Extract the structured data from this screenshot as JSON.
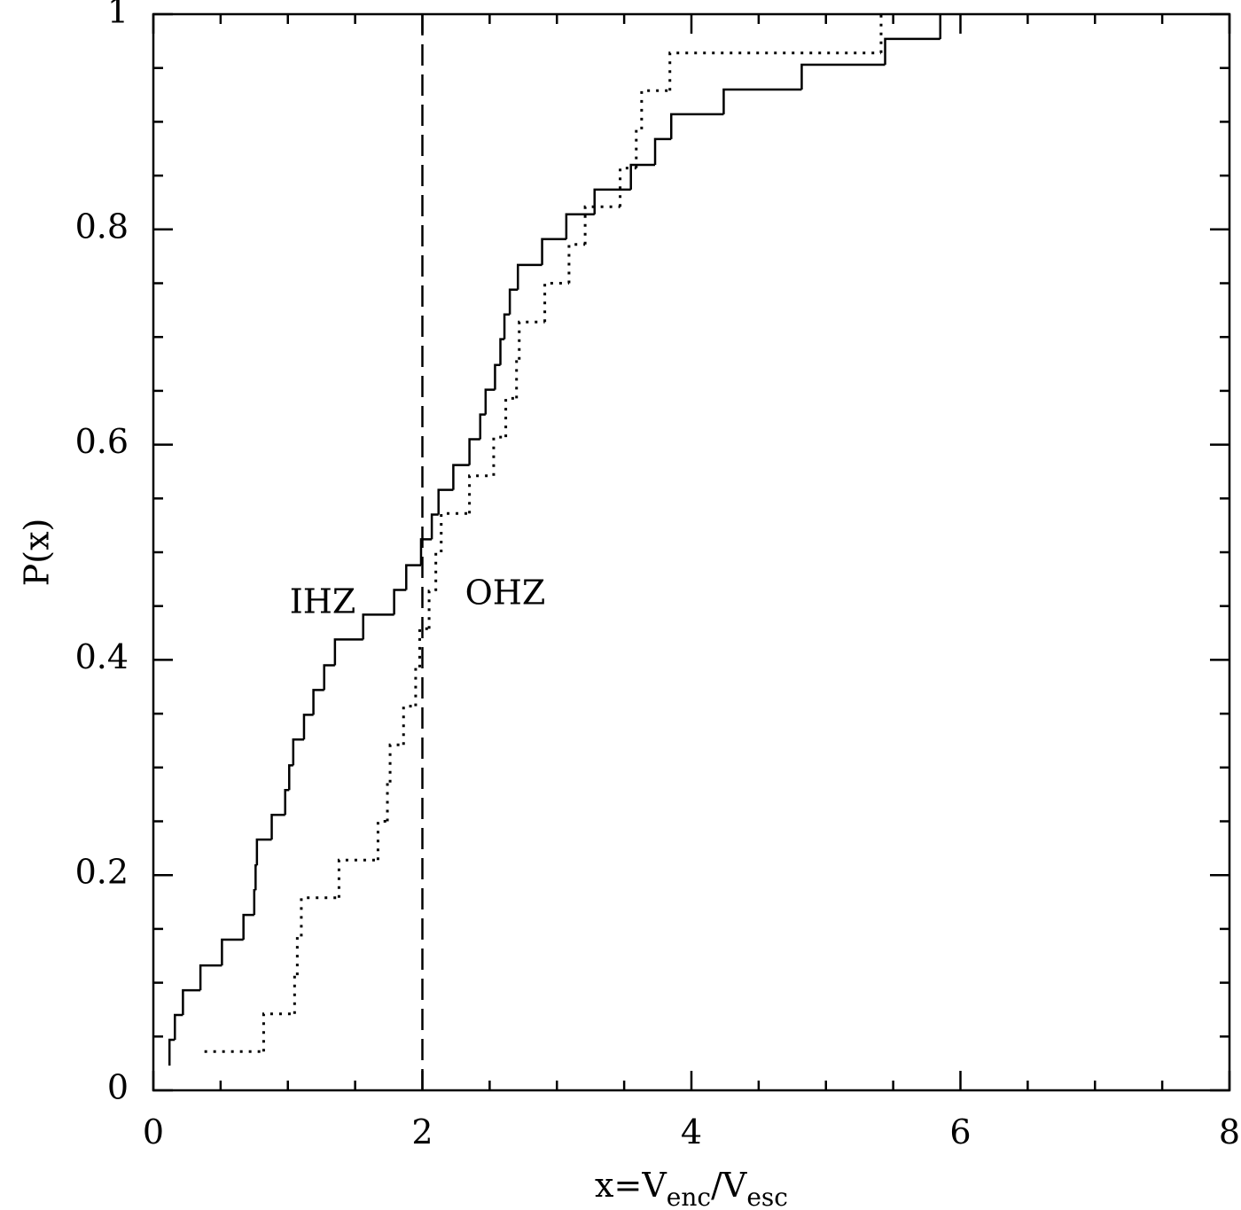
{
  "chart_data": {
    "type": "step",
    "xlabel": [
      "x=V",
      "enc",
      "/V",
      "esc"
    ],
    "ylabel": "P(x)",
    "xlim": [
      0,
      8
    ],
    "ylim": [
      0,
      1
    ],
    "xticks": [
      0,
      2,
      4,
      6,
      8
    ],
    "yticks": [
      0,
      0.2,
      0.4,
      0.6,
      0.8,
      1
    ],
    "xminorticks": [
      0.5,
      1,
      1.5,
      2.5,
      3,
      3.5,
      4.5,
      5,
      5.5,
      6.5,
      7,
      7.5
    ],
    "yminorticks": [
      0.05,
      0.1,
      0.15,
      0.25,
      0.3,
      0.35,
      0.45,
      0.5,
      0.55,
      0.65,
      0.7,
      0.75,
      0.85,
      0.9,
      0.95
    ],
    "vline": {
      "x": 2,
      "linestyle": "dashed",
      "color": "#000000"
    },
    "series": [
      {
        "name": "IHZ",
        "color": "#000000",
        "linestyle": "solid",
        "x": [
          0.12,
          0.12,
          0.16,
          0.22,
          0.35,
          0.51,
          0.67,
          0.75,
          0.76,
          0.77,
          0.88,
          0.98,
          1.01,
          1.04,
          1.12,
          1.19,
          1.27,
          1.35,
          1.56,
          1.79,
          1.88,
          1.99,
          2.07,
          2.12,
          2.23,
          2.35,
          2.43,
          2.47,
          2.54,
          2.58,
          2.61,
          2.65,
          2.71,
          2.89,
          3.07,
          3.28,
          3.55,
          3.73,
          3.85,
          4.24,
          4.82,
          5.44,
          5.85
        ],
        "values": [
          0.023,
          0.047,
          0.07,
          0.093,
          0.116,
          0.14,
          0.163,
          0.186,
          0.209,
          0.233,
          0.256,
          0.279,
          0.302,
          0.326,
          0.349,
          0.372,
          0.395,
          0.419,
          0.442,
          0.465,
          0.488,
          0.512,
          0.535,
          0.558,
          0.581,
          0.605,
          0.628,
          0.651,
          0.674,
          0.698,
          0.721,
          0.744,
          0.767,
          0.791,
          0.814,
          0.837,
          0.86,
          0.884,
          0.907,
          0.93,
          0.953,
          0.977,
          1.0
        ]
      },
      {
        "name": "OHZ",
        "color": "#000000",
        "linestyle": "dotted",
        "x": [
          0.38,
          0.82,
          1.05,
          1.07,
          1.1,
          1.38,
          1.67,
          1.74,
          1.76,
          1.86,
          1.95,
          1.98,
          2.05,
          2.1,
          2.14,
          2.35,
          2.53,
          2.62,
          2.7,
          2.72,
          2.91,
          3.09,
          3.21,
          3.47,
          3.59,
          3.63,
          3.84,
          5.41
        ],
        "values": [
          0.036,
          0.071,
          0.107,
          0.143,
          0.179,
          0.214,
          0.25,
          0.286,
          0.321,
          0.357,
          0.393,
          0.429,
          0.464,
          0.5,
          0.536,
          0.571,
          0.607,
          0.643,
          0.679,
          0.714,
          0.75,
          0.786,
          0.821,
          0.857,
          0.893,
          0.929,
          0.964,
          1.0
        ]
      }
    ]
  }
}
